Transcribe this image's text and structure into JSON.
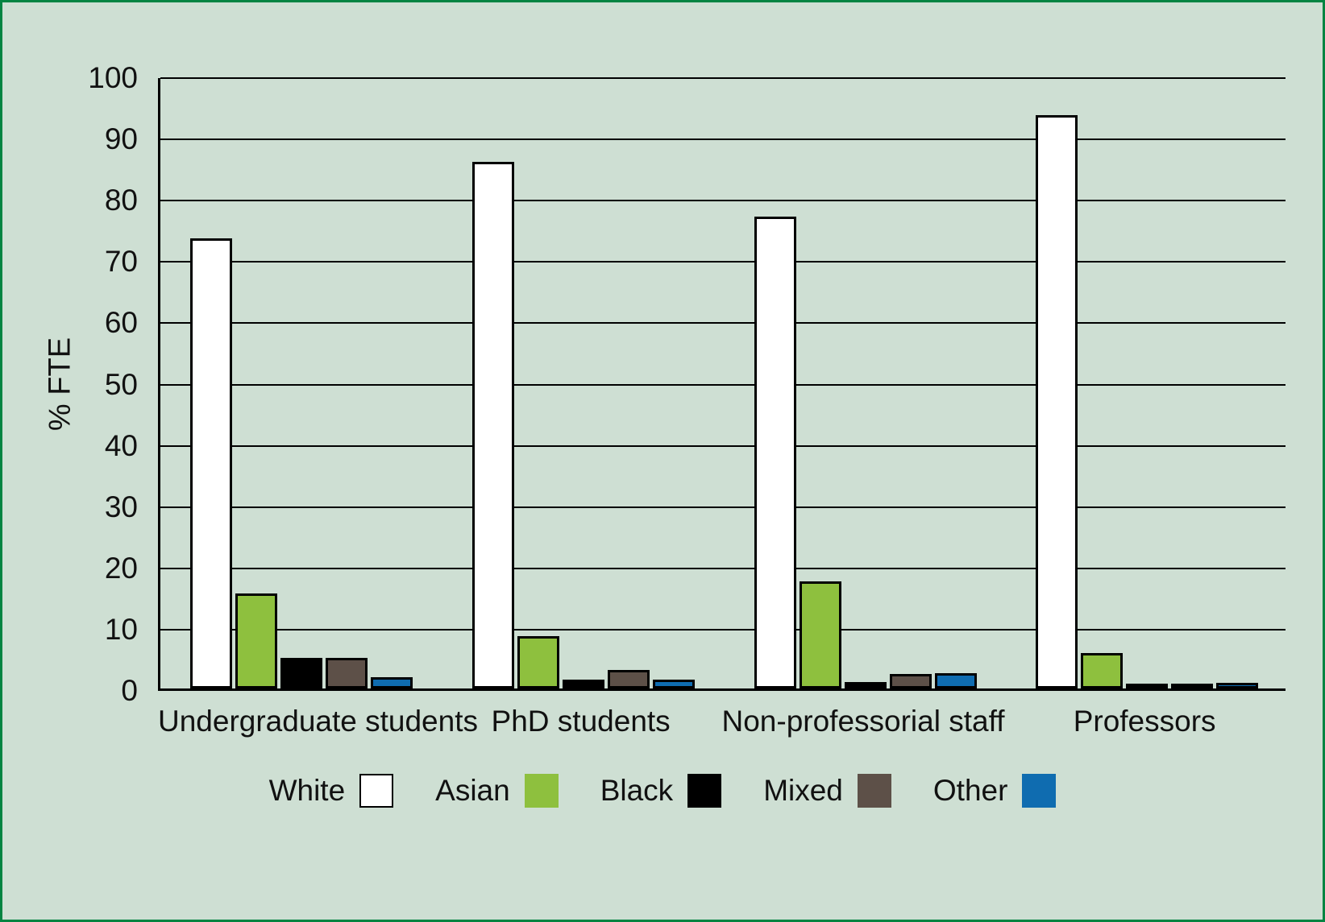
{
  "chart_data": {
    "type": "bar",
    "title": "",
    "xlabel": "",
    "ylabel": "% FTE",
    "ylim": [
      0,
      100
    ],
    "ytick_step": 10,
    "ytick_labels": [
      "0",
      "10",
      "20",
      "30",
      "40",
      "50",
      "60",
      "70",
      "80",
      "90",
      "100"
    ],
    "grid": true,
    "legend_position": "bottom",
    "categories": [
      "Undergraduate students",
      "PhD students",
      "Non-professorial staff",
      "Professors"
    ],
    "series": [
      {
        "name": "White",
        "color": "#FFFFFF",
        "values": [
          73.5,
          86,
          77,
          93.5
        ]
      },
      {
        "name": "Asian",
        "color": "#8EC03E",
        "values": [
          15.5,
          8.5,
          17.5,
          5.8
        ]
      },
      {
        "name": "Black",
        "color": "#000000",
        "values": [
          5,
          1.5,
          1,
          0.1
        ]
      },
      {
        "name": "Mixed",
        "color": "#5D5048",
        "values": [
          5,
          3,
          2.4,
          0.1
        ]
      },
      {
        "name": "Other",
        "color": "#0F6CB0",
        "values": [
          1.8,
          1.5,
          2.5,
          0.9
        ]
      }
    ]
  },
  "colors": {
    "background": "#CEDFD3",
    "frame_border": "#048442",
    "axis": "#000000",
    "gridline": "#000000"
  }
}
